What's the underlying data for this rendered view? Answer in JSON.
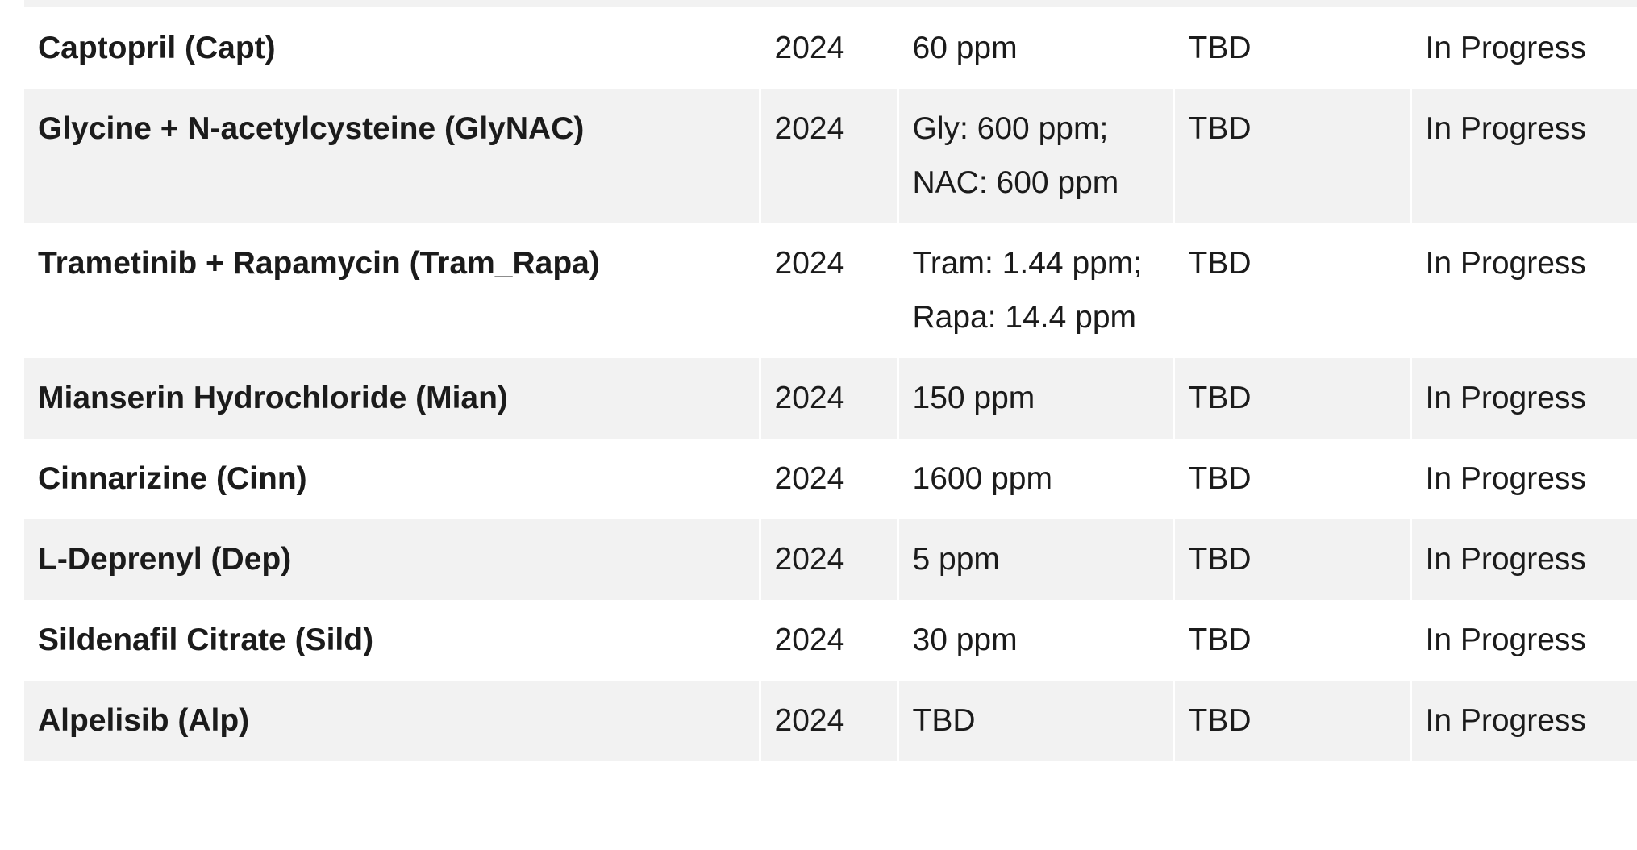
{
  "table": {
    "rows": [
      [
        "Captopril (Capt)",
        "2024",
        "60 ppm",
        "TBD",
        "In Progress"
      ],
      [
        "Glycine + N-acetylcysteine (GlyNAC)",
        "2024",
        "Gly: 600 ppm; NAC: 600 ppm",
        "TBD",
        "In Progress"
      ],
      [
        "Trametinib + Rapamycin (Tram_Rapa)",
        "2024",
        "Tram: 1.44 ppm; Rapa: 14.4 ppm",
        "TBD",
        "In Progress"
      ],
      [
        "Mianserin Hydrochloride (Mian)",
        "2024",
        "150 ppm",
        "TBD",
        "In Progress"
      ],
      [
        "Cinnarizine (Cinn)",
        "2024",
        "1600 ppm",
        "TBD",
        "In Progress"
      ],
      [
        "L-Deprenyl (Dep)",
        "2024",
        "5 ppm",
        "TBD",
        "In Progress"
      ],
      [
        "Sildenafil Citrate (Sild)",
        "2024",
        "30 ppm",
        "TBD",
        "In Progress"
      ],
      [
        "Alpelisib (Alp)",
        "2024",
        "TBD",
        "TBD",
        "In Progress"
      ]
    ]
  }
}
